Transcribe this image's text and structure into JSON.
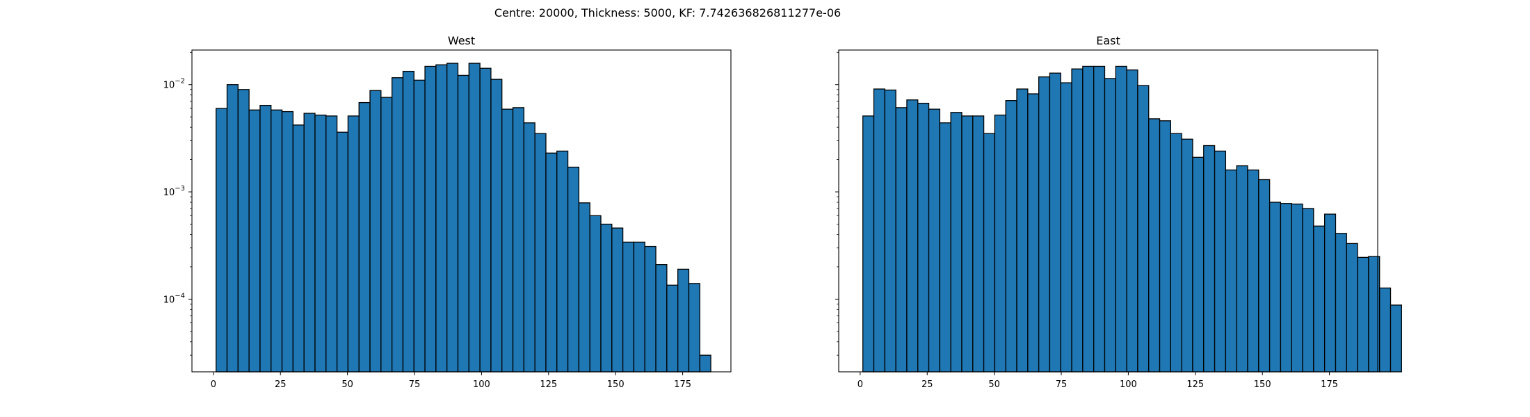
{
  "suptitle": "Centre: 20000, Thickness: 5000, KF: 7.742636826811277e-06",
  "colors": {
    "bar_fill": "#1f77b4",
    "bar_edge": "#000000"
  },
  "chart_data": [
    {
      "type": "bar",
      "title": "West",
      "yscale": "log",
      "xlim": [
        -8,
        193
      ],
      "ylim": [
        2.1e-05,
        0.021
      ],
      "x_ticks": [
        0,
        25,
        50,
        75,
        100,
        125,
        150,
        175
      ],
      "y_ticks": [
        {
          "value": 0.01,
          "base": "10",
          "exp": "−2"
        },
        {
          "value": 0.001,
          "base": "10",
          "exp": "−3"
        },
        {
          "value": 0.0001,
          "base": "10",
          "exp": "−4"
        }
      ],
      "bin_start": 1,
      "bin_width": 4.1,
      "values": [
        0.006,
        0.01,
        0.009,
        0.0058,
        0.0064,
        0.0058,
        0.0056,
        0.0042,
        0.0054,
        0.0052,
        0.0051,
        0.0036,
        0.0051,
        0.0068,
        0.0088,
        0.0076,
        0.0116,
        0.0133,
        0.011,
        0.0148,
        0.0153,
        0.0158,
        0.0122,
        0.0158,
        0.0142,
        0.0112,
        0.0059,
        0.0061,
        0.0044,
        0.0035,
        0.0023,
        0.0024,
        0.0017,
        0.00079,
        0.0006,
        0.0005,
        0.00046,
        0.00034,
        0.00034,
        0.00031,
        0.00021,
        0.000135,
        0.00019,
        0.00014,
        3e-05
      ]
    },
    {
      "type": "bar",
      "title": "East",
      "yscale": "log",
      "xlim": [
        -8,
        193
      ],
      "ylim": [
        2.1e-05,
        0.021
      ],
      "x_ticks": [
        0,
        25,
        50,
        75,
        100,
        125,
        150,
        175
      ],
      "y_ticks": [],
      "bin_start": 1,
      "bin_width": 4.1,
      "values": [
        0.0051,
        0.0091,
        0.0089,
        0.0061,
        0.0072,
        0.0067,
        0.0059,
        0.0044,
        0.0055,
        0.0051,
        0.0051,
        0.0035,
        0.0052,
        0.0071,
        0.0091,
        0.0082,
        0.0118,
        0.0128,
        0.0104,
        0.014,
        0.0148,
        0.0148,
        0.0114,
        0.0148,
        0.0137,
        0.0098,
        0.0048,
        0.0046,
        0.0035,
        0.0031,
        0.0021,
        0.0027,
        0.0024,
        0.0016,
        0.00175,
        0.0016,
        0.0013,
        0.0008,
        0.00078,
        0.00077,
        0.0007,
        0.00048,
        0.00062,
        0.00041,
        0.00033,
        0.000245,
        0.00025,
        0.000127,
        8.8e-05
      ]
    }
  ]
}
